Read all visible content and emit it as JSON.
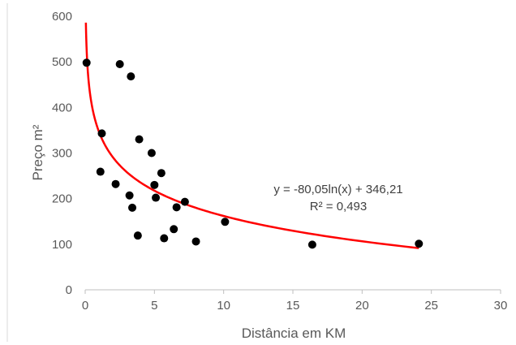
{
  "chart_data": {
    "type": "scatter",
    "title": "",
    "xlabel": "Distância em KM",
    "ylabel": "Preço m²",
    "xlim": [
      0,
      30
    ],
    "ylim": [
      0,
      600
    ],
    "x_ticks": [
      0,
      5,
      10,
      15,
      20,
      25,
      30
    ],
    "y_ticks": [
      0,
      100,
      200,
      300,
      400,
      500,
      600
    ],
    "grid": false,
    "legend": "none",
    "series": [
      {
        "marker_color": "#000000",
        "points": [
          {
            "x": 0.1,
            "y": 498
          },
          {
            "x": 2.5,
            "y": 495
          },
          {
            "x": 3.3,
            "y": 468
          },
          {
            "x": 1.2,
            "y": 343
          },
          {
            "x": 3.9,
            "y": 330
          },
          {
            "x": 4.8,
            "y": 300
          },
          {
            "x": 1.1,
            "y": 259
          },
          {
            "x": 5.5,
            "y": 256
          },
          {
            "x": 2.2,
            "y": 232
          },
          {
            "x": 5.0,
            "y": 230
          },
          {
            "x": 3.2,
            "y": 207
          },
          {
            "x": 5.1,
            "y": 202
          },
          {
            "x": 7.2,
            "y": 193
          },
          {
            "x": 3.4,
            "y": 180
          },
          {
            "x": 6.6,
            "y": 181
          },
          {
            "x": 10.1,
            "y": 149
          },
          {
            "x": 6.4,
            "y": 133
          },
          {
            "x": 3.8,
            "y": 119
          },
          {
            "x": 5.7,
            "y": 113
          },
          {
            "x": 8.0,
            "y": 106
          },
          {
            "x": 16.4,
            "y": 99
          },
          {
            "x": 24.1,
            "y": 101
          }
        ]
      }
    ],
    "trendline": {
      "type": "logarithmic",
      "a": -80.05,
      "b": 346.21,
      "x_from": 0.05,
      "x_to": 24.1,
      "color": "#ff0000",
      "equation_text": "y = -80,05ln(x) + 346,21",
      "r2_text": "R² = 0,493"
    }
  }
}
